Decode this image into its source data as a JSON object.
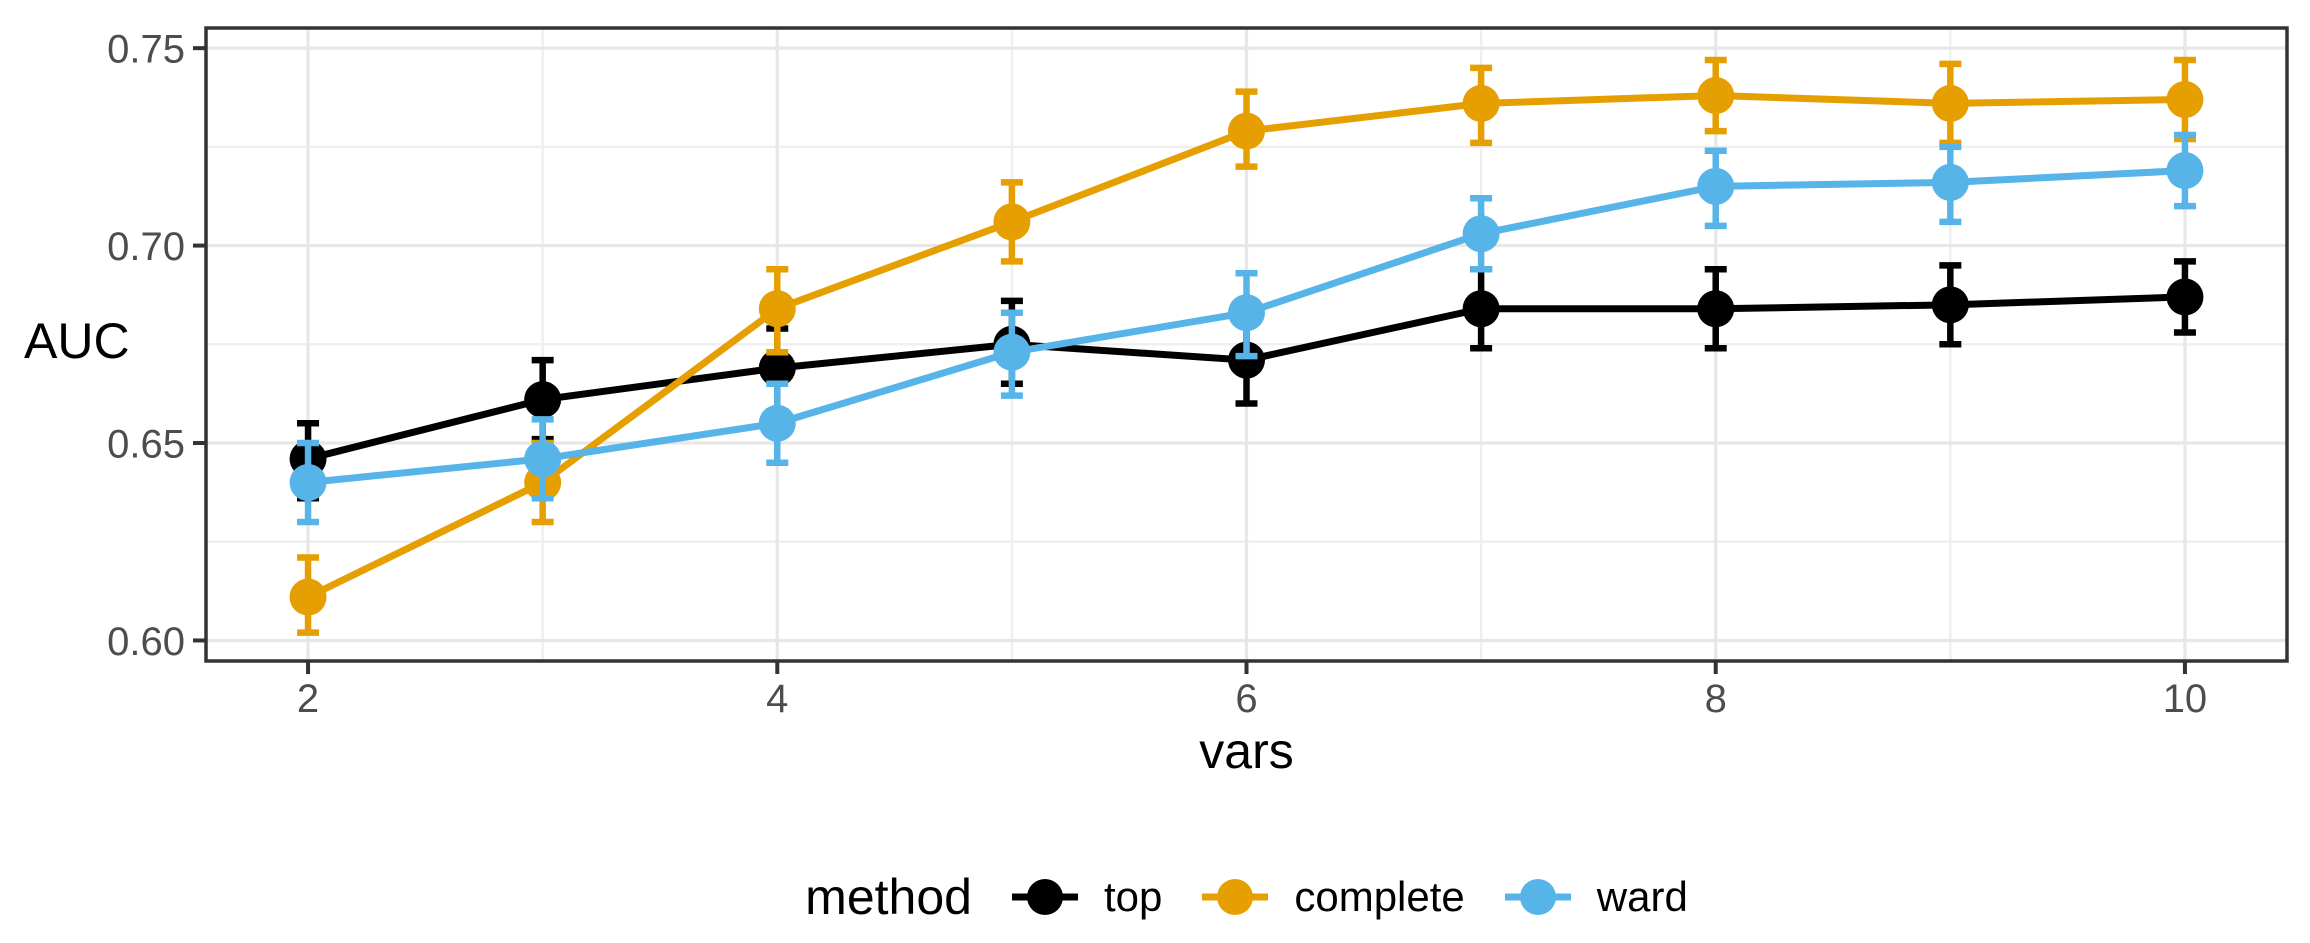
{
  "chart_data": {
    "type": "line",
    "title": "",
    "xlabel": "vars",
    "ylabel": "AUC",
    "x": [
      2,
      3,
      4,
      5,
      6,
      7,
      8,
      9,
      10
    ],
    "series": [
      {
        "name": "top",
        "color": "#000000",
        "values": [
          0.646,
          0.661,
          0.669,
          0.675,
          0.671,
          0.684,
          0.684,
          0.685,
          0.687
        ],
        "err_lo": [
          0.636,
          0.651,
          0.658,
          0.665,
          0.66,
          0.674,
          0.674,
          0.675,
          0.678
        ],
        "err_hi": [
          0.655,
          0.671,
          0.679,
          0.686,
          0.681,
          0.694,
          0.694,
          0.695,
          0.696
        ]
      },
      {
        "name": "complete",
        "color": "#E69F00",
        "values": [
          0.611,
          0.64,
          0.684,
          0.706,
          0.729,
          0.736,
          0.738,
          0.736,
          0.737
        ],
        "err_lo": [
          0.602,
          0.63,
          0.673,
          0.696,
          0.72,
          0.726,
          0.729,
          0.726,
          0.727
        ],
        "err_hi": [
          0.621,
          0.65,
          0.694,
          0.716,
          0.739,
          0.745,
          0.747,
          0.746,
          0.747
        ]
      },
      {
        "name": "ward",
        "color": "#56B4E9",
        "values": [
          0.64,
          0.646,
          0.655,
          0.673,
          0.683,
          0.703,
          0.715,
          0.716,
          0.719
        ],
        "err_lo": [
          0.63,
          0.636,
          0.645,
          0.662,
          0.672,
          0.694,
          0.705,
          0.706,
          0.71
        ],
        "err_hi": [
          0.65,
          0.656,
          0.665,
          0.683,
          0.693,
          0.712,
          0.724,
          0.725,
          0.728
        ]
      }
    ],
    "x_ticks": [
      2,
      4,
      6,
      8,
      10
    ],
    "x_tick_labels": [
      "2",
      "4",
      "6",
      "8",
      "10"
    ],
    "x_minor": [
      3,
      5,
      7,
      9
    ],
    "y_ticks": [
      0.6,
      0.65,
      0.7,
      0.75
    ],
    "y_tick_labels": [
      "0.60",
      "0.65",
      "0.70",
      "0.75"
    ],
    "y_minor": [
      0.625,
      0.675,
      0.725
    ],
    "xlim": [
      1.565,
      10.435
    ],
    "ylim": [
      0.5948,
      0.7551
    ],
    "grid": true,
    "legend_title": "method",
    "legend_position": "bottom"
  },
  "styles": {
    "background": "#FFFFFF",
    "panel_border": "#333333",
    "tick_color": "#333333",
    "tick_label_color": "#4D4D4D",
    "grid_major": "#E7E7E7",
    "grid_minor": "#EFEFEF"
  }
}
